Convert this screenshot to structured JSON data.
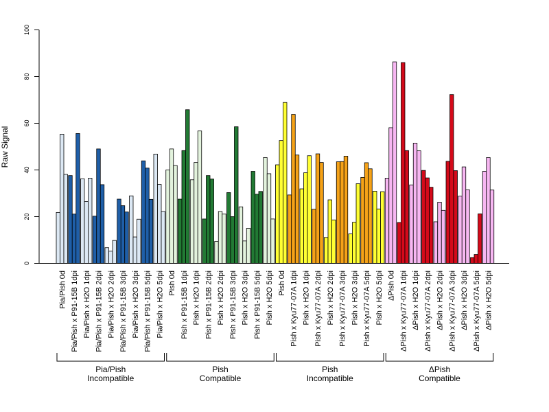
{
  "chart_data": {
    "type": "bar",
    "ylabel": "Raw Signal",
    "ylim": [
      0,
      100
    ],
    "yticks": [
      0,
      20,
      40,
      60,
      80,
      100
    ],
    "categories": [
      "Pia/Pish 0d",
      "Pia/Pish x P91-15B 1dpi",
      "Pia/Pish x H2O 1dpi",
      "Pia/Pish x P91-15B 2dpi",
      "Pia/Pish x H2O 2dpi",
      "Pia/Pish x P91-15B 3dpi",
      "Pia/Pish x H2O 3dpi",
      "Pia/Pish x P91-15B 5dpi",
      "Pia/Pish x H2O 5dpi",
      "Pish 0d",
      "Pish x P91-15B 1dpi",
      "Pish x H2O 1dpi",
      "Pish x P91-15B 2dpi",
      "Pish x H2O 2dpi",
      "Pish x P91-15B 3dpi",
      "Pish x H2O 3dpi",
      "Pish x P91-15B 5dpi",
      "Pish x H2O 5dpi",
      "Pish 0d",
      "Pish x Kyu77-07A 1dpi",
      "Pish x H2O 1dpi",
      "Pish x Kyu77-07A 2dpi",
      "Pish x H2O 2dpi",
      "Pish x Kyu77-07A 3dpi",
      "Pish x H2O 3dpi",
      "Pish x Kyu77-07A 5dpi",
      "Pish x H2O 5dpi",
      "ΔPish 0d",
      "ΔPish x Kyu77-07A 1dpi",
      "ΔPish x H2O 1dpi",
      "ΔPish x Kyu77-07A 2dpi",
      "ΔPish x H2O 2dpi",
      "ΔPish x Kyu77-07A 3dpi",
      "ΔPish x H2O 3dpi",
      "ΔPish x Kyu77-07A 5dpi",
      "ΔPish x H2O 5dpi"
    ],
    "values": [
      [
        21.8,
        55.3,
        38.1
      ],
      [
        37.6,
        21.1,
        55.6
      ],
      [
        36.2,
        26.5,
        36.5
      ],
      [
        20.2,
        49.0,
        33.7
      ],
      [
        6.7,
        5.2,
        9.8
      ],
      [
        27.5,
        24.7,
        22.0
      ],
      [
        28.9,
        11.3,
        18.9
      ],
      [
        43.9,
        40.8,
        27.4
      ],
      [
        46.8,
        33.8,
        22.2
      ],
      [
        40.0,
        49.0,
        41.9
      ],
      [
        27.5,
        48.3,
        65.8
      ],
      [
        35.8,
        43.2,
        56.7
      ],
      [
        19.0,
        37.6,
        36.1
      ],
      [
        9.4,
        22.2,
        21.1
      ],
      [
        30.3,
        20.0,
        58.5
      ],
      [
        24.2,
        9.6,
        15.0
      ],
      [
        39.4,
        29.6,
        30.8
      ],
      [
        45.3,
        38.4,
        19.0
      ],
      [
        42.2,
        52.6,
        68.9
      ],
      [
        29.3,
        63.8,
        46.4
      ],
      [
        31.9,
        38.8,
        46.1
      ],
      [
        23.2,
        46.9,
        43.2
      ],
      [
        11.1,
        27.2,
        18.6
      ],
      [
        43.5,
        43.6,
        45.9
      ],
      [
        12.6,
        17.6,
        34.1
      ],
      [
        36.8,
        43.1,
        40.5
      ],
      [
        30.9,
        23.3,
        30.7
      ],
      [
        36.5,
        58.1,
        86.3
      ],
      [
        17.5,
        86.0,
        48.3
      ],
      [
        33.6,
        51.5,
        48.2
      ],
      [
        39.8,
        36.6,
        32.6
      ],
      [
        17.8,
        26.2,
        22.7
      ],
      [
        43.7,
        72.3,
        39.7
      ],
      [
        28.8,
        41.3,
        31.5
      ],
      [
        2.5,
        3.8,
        21.2
      ],
      [
        39.4,
        45.3,
        31.4
      ]
    ],
    "group_colors": [
      "#dce8f4",
      "#1f5fa8",
      "#e3f3dd",
      "#227a34",
      "#ffff33",
      "#f5a218",
      "#f7b7f2",
      "#d40a1a"
    ],
    "group_labels": [
      {
        "line1": "Pia/Pish",
        "line2": "Incompatible"
      },
      {
        "line1": "Pish",
        "line2": "Compatible"
      },
      {
        "line1": "Pish",
        "line2": "Incompatible"
      },
      {
        "line1": "ΔPish",
        "line2": "Compatible"
      }
    ]
  }
}
